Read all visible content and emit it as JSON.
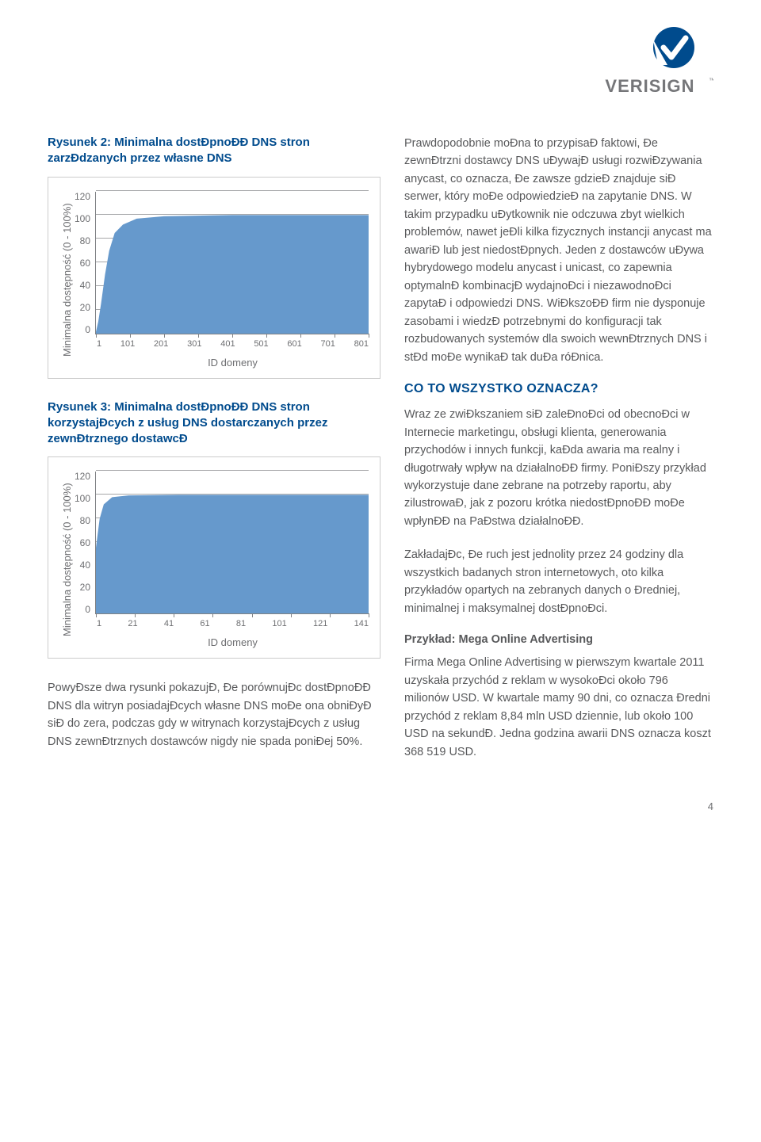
{
  "logo": {
    "brand": "VERISIGN",
    "checkmark_bg": "#004b8d",
    "checkmark_fg": "#ffffff",
    "text_color": "#757679"
  },
  "chart1": {
    "title": "Rysunek 2: Minimalna dostĐpnoĐĐ DNS stron zarzĐdzanych przez własne DNS",
    "type": "area",
    "ylabel": "Minimalna dostępność (0 - 100%)",
    "xlabel": "ID domeny",
    "yticks": [
      "120",
      "100",
      "80",
      "60",
      "40",
      "20",
      "0"
    ],
    "xticks": [
      "1",
      "101",
      "201",
      "301",
      "401",
      "501",
      "601",
      "701",
      "801"
    ],
    "ylim": [
      0,
      120
    ],
    "fill_color": "#6699cc",
    "grid_color": "#808285",
    "background_color": "#ffffff",
    "data_points": [
      {
        "x": 0,
        "y": 0
      },
      {
        "x": 0.01,
        "y": 10
      },
      {
        "x": 0.02,
        "y": 25
      },
      {
        "x": 0.035,
        "y": 50
      },
      {
        "x": 0.05,
        "y": 70
      },
      {
        "x": 0.07,
        "y": 85
      },
      {
        "x": 0.1,
        "y": 92
      },
      {
        "x": 0.15,
        "y": 97
      },
      {
        "x": 0.25,
        "y": 99
      },
      {
        "x": 0.5,
        "y": 100
      },
      {
        "x": 1.0,
        "y": 100
      }
    ]
  },
  "chart2": {
    "title": "Rysunek 3: Minimalna dostĐpnoĐĐ DNS stron korzystajĐcych z usług DNS dostarczanych przez zewnĐtrznego dostawcĐ",
    "type": "area",
    "ylabel": "Minimalna dostępność (0 - 100%)",
    "xlabel": "ID domeny",
    "yticks": [
      "120",
      "100",
      "80",
      "60",
      "40",
      "20",
      "0"
    ],
    "xticks": [
      "1",
      "21",
      "41",
      "61",
      "81",
      "101",
      "121",
      "141"
    ],
    "ylim": [
      0,
      120
    ],
    "fill_color": "#6699cc",
    "grid_color": "#808285",
    "background_color": "#ffffff",
    "data_points": [
      {
        "x": 0,
        "y": 53
      },
      {
        "x": 0.015,
        "y": 80
      },
      {
        "x": 0.03,
        "y": 92
      },
      {
        "x": 0.06,
        "y": 98
      },
      {
        "x": 0.12,
        "y": 99.5
      },
      {
        "x": 0.3,
        "y": 100
      },
      {
        "x": 1.0,
        "y": 100
      }
    ]
  },
  "left_para": "PowyĐsze dwa rysunki pokazujĐ, Đe porównujĐc dostĐpnoĐĐ DNS dla witryn posiadajĐcych własne DNS moĐe ona obniĐyĐ siĐ do zera, podczas gdy w witrynach korzystajĐcych z usług DNS zewnĐtrznych dostawców nigdy nie spada poniĐej 50%.",
  "right_para1": "Prawdopodobnie moĐna to przypisaĐ faktowi, Đe zewnĐtrzni dostawcy DNS uĐywajĐ usługi rozwiĐzywania anycast, co oznacza, Đe zawsze gdzieĐ znajduje siĐ serwer, który moĐe odpowiedzieĐ na zapytanie DNS. W takim przypadku uĐytkownik nie odczuwa zbyt wielkich problemów, nawet jeĐli kilka fizycznych instancji anycast ma awariĐ lub jest niedostĐpnych. Jeden z dostawców uĐywa hybrydowego modelu anycast i unicast, co zapewnia optymalnĐ kombinacjĐ wydajnoĐci i niezawodnoĐci zapytaĐ i odpowiedzi DNS. WiĐkszoĐĐ firm nie dysponuje zasobami i wiedzĐ potrzebnymi do konfiguracji tak rozbudowanych systemów dla swoich wewnĐtrznych DNS i stĐd moĐe wynikaĐ tak duĐa róĐnica.",
  "right_heading": "CO TO WSZYSTKO OZNACZA?",
  "right_para2": "Wraz ze zwiĐkszaniem siĐ zaleĐnoĐci od obecnoĐci w Internecie marketingu, obsługi klienta, generowania przychodów i innych funkcji, kaĐda awaria ma realny i długotrwały wpływ na działalnoĐĐ firmy. PoniĐszy przykład wykorzystuje dane zebrane na potrzeby raportu, aby zilustrowaĐ, jak z pozoru krótka niedostĐpnoĐĐ moĐe wpłynĐĐ na PaĐstwa działalnoĐĐ.",
  "right_para3": "ZakładajĐc, Đe ruch jest jednolity przez 24 godziny dla wszystkich badanych stron internetowych, oto kilka przykładów opartych na zebranych danych o Đredniej, minimalnej i maksymalnej dostĐpnoĐci.",
  "example_heading": "Przykład: Mega Online Advertising",
  "right_para4": "Firma Mega Online Advertising w pierwszym kwartale 2011 uzyskała przychód z reklam w wysokoĐci około 796 milionów USD. W kwartale mamy 90 dni, co oznacza Đredni przychód z reklam 8,84 mln USD dziennie, lub około 100 USD na sekundĐ. Jedna godzina awarii DNS oznacza koszt 368 519 USD.",
  "page_number": "4"
}
